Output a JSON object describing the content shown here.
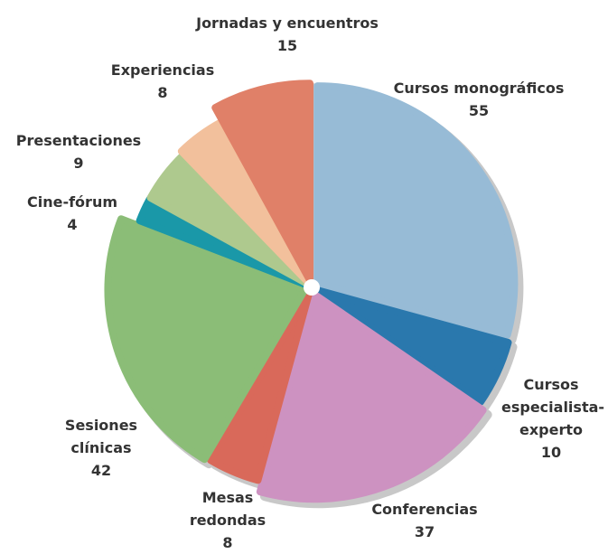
{
  "chart_data": {
    "type": "pie",
    "categories": [
      "Cursos monográficos",
      "Cursos especialista-experto",
      "Conferencias",
      "Mesas redondas",
      "Sesiones clínicas",
      "Cine-fórum",
      "Presentaciones",
      "Experiencias",
      "Jornadas y encuentros"
    ],
    "values": [
      55,
      10,
      37,
      8,
      42,
      4,
      9,
      8,
      15
    ],
    "colors": [
      "#97bbd6",
      "#2a78ad",
      "#cd92c1",
      "#d9695a",
      "#8bbd77",
      "#1a98a8",
      "#aec98e",
      "#f2c09c",
      "#e08068"
    ]
  }
}
